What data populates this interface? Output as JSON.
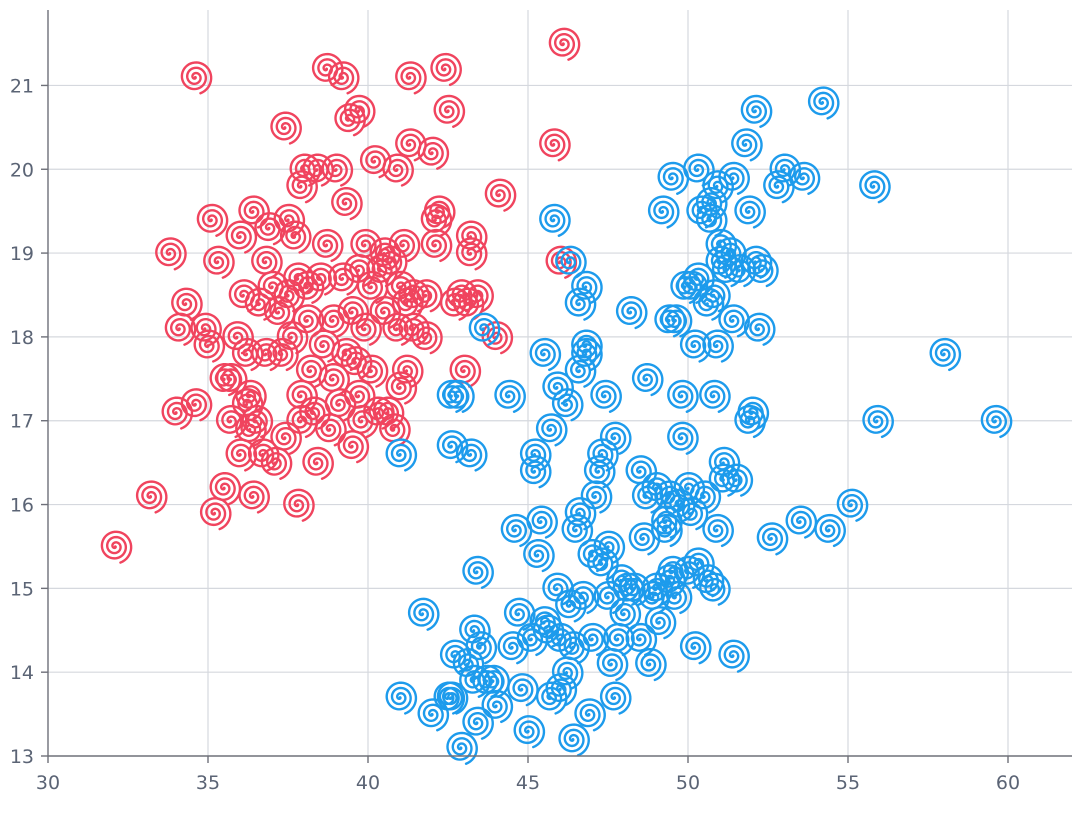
{
  "chart_data": {
    "type": "scatter",
    "title": "",
    "xlabel": "",
    "ylabel": "",
    "xlim": [
      30,
      62
    ],
    "ylim": [
      13,
      21.9
    ],
    "xticks": [
      "30",
      "35",
      "40",
      "45",
      "50",
      "55",
      "60"
    ],
    "yticks": [
      "13",
      "14",
      "15",
      "16",
      "17",
      "18",
      "19",
      "20",
      "21"
    ],
    "grid": true,
    "symbol": "spiral",
    "series": [
      {
        "color": "#f0445e",
        "points": [
          [
            32.1,
            15.5
          ],
          [
            33.2,
            16.1
          ],
          [
            33.8,
            19.0
          ],
          [
            34.0,
            17.1
          ],
          [
            34.1,
            18.1
          ],
          [
            34.3,
            18.4
          ],
          [
            34.6,
            21.1
          ],
          [
            34.6,
            17.2
          ],
          [
            34.9,
            18.1
          ],
          [
            35.0,
            17.9
          ],
          [
            35.1,
            19.4
          ],
          [
            35.2,
            15.9
          ],
          [
            35.3,
            18.9
          ],
          [
            35.5,
            16.2
          ],
          [
            35.5,
            17.5
          ],
          [
            35.7,
            17.5
          ],
          [
            35.7,
            17.0
          ],
          [
            35.9,
            18.0
          ],
          [
            36.0,
            19.2
          ],
          [
            36.1,
            18.5
          ],
          [
            36.0,
            16.6
          ],
          [
            36.2,
            17.8
          ],
          [
            36.2,
            17.2
          ],
          [
            36.3,
            16.9
          ],
          [
            36.3,
            17.3
          ],
          [
            36.4,
            16.1
          ],
          [
            36.4,
            19.5
          ],
          [
            36.5,
            17.0
          ],
          [
            36.6,
            18.4
          ],
          [
            36.7,
            16.6
          ],
          [
            36.8,
            17.8
          ],
          [
            36.8,
            18.9
          ],
          [
            36.9,
            19.3
          ],
          [
            37.0,
            18.6
          ],
          [
            37.1,
            16.5
          ],
          [
            37.2,
            18.3
          ],
          [
            37.3,
            17.8
          ],
          [
            37.4,
            16.8
          ],
          [
            37.4,
            20.5
          ],
          [
            37.5,
            19.4
          ],
          [
            37.5,
            18.5
          ],
          [
            37.6,
            18.0
          ],
          [
            37.7,
            19.2
          ],
          [
            37.8,
            18.7
          ],
          [
            37.8,
            16.0
          ],
          [
            37.9,
            17.0
          ],
          [
            37.9,
            17.3
          ],
          [
            37.9,
            19.8
          ],
          [
            38.0,
            20.0
          ],
          [
            38.1,
            18.2
          ],
          [
            38.1,
            18.6
          ],
          [
            38.2,
            17.6
          ],
          [
            38.3,
            17.1
          ],
          [
            38.4,
            16.5
          ],
          [
            38.4,
            20.0
          ],
          [
            38.5,
            18.7
          ],
          [
            38.6,
            17.9
          ],
          [
            38.7,
            21.2
          ],
          [
            38.7,
            19.1
          ],
          [
            38.8,
            16.9
          ],
          [
            38.9,
            17.5
          ],
          [
            38.9,
            18.2
          ],
          [
            39.0,
            20.0
          ],
          [
            39.1,
            17.2
          ],
          [
            39.2,
            18.7
          ],
          [
            39.2,
            21.1
          ],
          [
            39.3,
            17.8
          ],
          [
            39.3,
            19.6
          ],
          [
            39.4,
            20.6
          ],
          [
            39.5,
            18.3
          ],
          [
            39.5,
            16.7
          ],
          [
            39.6,
            17.7
          ],
          [
            39.7,
            18.8
          ],
          [
            39.7,
            20.7
          ],
          [
            39.7,
            17.3
          ],
          [
            39.8,
            17.0
          ],
          [
            39.9,
            18.1
          ],
          [
            39.9,
            19.1
          ],
          [
            40.1,
            18.6
          ],
          [
            40.1,
            17.6
          ],
          [
            40.2,
            20.1
          ],
          [
            40.3,
            17.1
          ],
          [
            40.4,
            18.8
          ],
          [
            40.5,
            19.0
          ],
          [
            40.5,
            18.3
          ],
          [
            40.6,
            17.1
          ],
          [
            40.7,
            18.9
          ],
          [
            40.8,
            16.9
          ],
          [
            40.9,
            18.1
          ],
          [
            40.9,
            20.0
          ],
          [
            41.0,
            17.4
          ],
          [
            41.0,
            18.6
          ],
          [
            41.1,
            19.1
          ],
          [
            41.2,
            17.6
          ],
          [
            41.2,
            18.4
          ],
          [
            41.3,
            20.3
          ],
          [
            41.3,
            21.1
          ],
          [
            41.4,
            18.1
          ],
          [
            41.4,
            18.5
          ],
          [
            41.8,
            18.5
          ],
          [
            41.8,
            18.0
          ],
          [
            42.0,
            20.2
          ],
          [
            42.1,
            19.1
          ],
          [
            42.1,
            19.4
          ],
          [
            42.2,
            19.5
          ],
          [
            42.4,
            21.2
          ],
          [
            42.5,
            20.7
          ],
          [
            42.7,
            18.4
          ],
          [
            42.9,
            18.5
          ],
          [
            43.0,
            17.6
          ],
          [
            43.1,
            18.4
          ],
          [
            43.2,
            19.0
          ],
          [
            43.2,
            19.2
          ],
          [
            43.4,
            18.5
          ],
          [
            44.0,
            18.0
          ],
          [
            44.1,
            19.7
          ],
          [
            45.8,
            20.3
          ],
          [
            46.1,
            21.5
          ],
          [
            46.0,
            18.9
          ]
        ]
      },
      {
        "color": "#1d9bec",
        "points": [
          [
            41.0,
            13.7
          ],
          [
            41.0,
            16.6
          ],
          [
            41.7,
            14.7
          ],
          [
            42.0,
            13.5
          ],
          [
            42.5,
            13.7
          ],
          [
            42.6,
            17.3
          ],
          [
            42.6,
            16.7
          ],
          [
            42.6,
            13.7
          ],
          [
            42.7,
            14.2
          ],
          [
            42.8,
            17.3
          ],
          [
            42.9,
            13.1
          ],
          [
            43.1,
            14.1
          ],
          [
            43.2,
            16.6
          ],
          [
            43.3,
            14.5
          ],
          [
            43.3,
            13.9
          ],
          [
            43.4,
            13.4
          ],
          [
            43.4,
            15.2
          ],
          [
            43.5,
            14.3
          ],
          [
            43.6,
            18.1
          ],
          [
            43.7,
            13.9
          ],
          [
            43.9,
            13.9
          ],
          [
            44.0,
            13.6
          ],
          [
            44.4,
            17.3
          ],
          [
            44.5,
            14.3
          ],
          [
            44.6,
            15.7
          ],
          [
            44.7,
            14.7
          ],
          [
            44.8,
            13.8
          ],
          [
            45.0,
            13.3
          ],
          [
            45.1,
            14.4
          ],
          [
            45.2,
            16.6
          ],
          [
            45.2,
            16.4
          ],
          [
            45.3,
            15.4
          ],
          [
            45.4,
            15.8
          ],
          [
            45.5,
            17.8
          ],
          [
            45.5,
            14.6
          ],
          [
            45.6,
            14.5
          ],
          [
            45.7,
            16.9
          ],
          [
            45.7,
            13.7
          ],
          [
            45.8,
            19.4
          ],
          [
            45.9,
            17.4
          ],
          [
            45.9,
            15.0
          ],
          [
            46.0,
            14.4
          ],
          [
            46.0,
            13.8
          ],
          [
            46.2,
            14.0
          ],
          [
            46.2,
            17.2
          ],
          [
            46.3,
            14.8
          ],
          [
            46.3,
            18.9
          ],
          [
            46.4,
            13.2
          ],
          [
            46.4,
            14.3
          ],
          [
            46.5,
            15.7
          ],
          [
            46.6,
            15.9
          ],
          [
            46.6,
            18.4
          ],
          [
            46.6,
            17.6
          ],
          [
            46.7,
            14.9
          ],
          [
            46.8,
            17.8
          ],
          [
            46.8,
            18.6
          ],
          [
            46.8,
            17.9
          ],
          [
            46.9,
            13.5
          ],
          [
            47.0,
            14.4
          ],
          [
            47.0,
            15.4
          ],
          [
            47.1,
            16.1
          ],
          [
            47.2,
            16.4
          ],
          [
            47.3,
            15.3
          ],
          [
            47.3,
            16.6
          ],
          [
            47.4,
            17.3
          ],
          [
            47.5,
            15.5
          ],
          [
            47.5,
            14.9
          ],
          [
            47.6,
            14.1
          ],
          [
            47.7,
            16.8
          ],
          [
            47.7,
            13.7
          ],
          [
            47.8,
            14.4
          ],
          [
            47.9,
            15.1
          ],
          [
            48.0,
            14.7
          ],
          [
            48.1,
            15.0
          ],
          [
            48.2,
            18.3
          ],
          [
            48.3,
            15.0
          ],
          [
            48.5,
            14.4
          ],
          [
            48.5,
            16.4
          ],
          [
            48.6,
            15.6
          ],
          [
            48.7,
            16.1
          ],
          [
            48.7,
            17.5
          ],
          [
            48.8,
            14.1
          ],
          [
            48.9,
            14.9
          ],
          [
            49.0,
            15.0
          ],
          [
            49.0,
            16.2
          ],
          [
            49.1,
            14.6
          ],
          [
            49.2,
            19.5
          ],
          [
            49.3,
            15.8
          ],
          [
            49.3,
            15.7
          ],
          [
            49.4,
            15.1
          ],
          [
            49.4,
            16.1
          ],
          [
            49.4,
            18.2
          ],
          [
            49.5,
            15.2
          ],
          [
            49.5,
            19.9
          ],
          [
            49.6,
            14.9
          ],
          [
            49.6,
            18.2
          ],
          [
            49.7,
            16.0
          ],
          [
            49.8,
            17.3
          ],
          [
            49.8,
            16.8
          ],
          [
            49.9,
            18.6
          ],
          [
            50.0,
            16.2
          ],
          [
            50.0,
            15.2
          ],
          [
            50.1,
            15.9
          ],
          [
            50.1,
            18.6
          ],
          [
            50.2,
            17.9
          ],
          [
            50.2,
            14.3
          ],
          [
            50.3,
            18.7
          ],
          [
            50.3,
            20.0
          ],
          [
            50.3,
            15.3
          ],
          [
            50.4,
            19.5
          ],
          [
            50.5,
            16.1
          ],
          [
            50.6,
            15.1
          ],
          [
            50.6,
            18.4
          ],
          [
            50.7,
            19.4
          ],
          [
            50.7,
            19.6
          ],
          [
            50.8,
            17.3
          ],
          [
            50.8,
            18.5
          ],
          [
            50.8,
            15.0
          ],
          [
            50.9,
            19.8
          ],
          [
            50.9,
            15.7
          ],
          [
            50.9,
            17.9
          ],
          [
            51.0,
            18.9
          ],
          [
            51.0,
            19.1
          ],
          [
            51.1,
            16.3
          ],
          [
            51.1,
            16.5
          ],
          [
            51.2,
            18.8
          ],
          [
            51.3,
            19.0
          ],
          [
            51.4,
            18.2
          ],
          [
            51.4,
            19.9
          ],
          [
            51.4,
            14.2
          ],
          [
            51.5,
            16.3
          ],
          [
            51.6,
            18.8
          ],
          [
            51.8,
            20.3
          ],
          [
            51.9,
            19.5
          ],
          [
            51.9,
            17.0
          ],
          [
            52.0,
            17.1
          ],
          [
            52.1,
            18.9
          ],
          [
            52.1,
            20.7
          ],
          [
            52.2,
            18.1
          ],
          [
            52.3,
            18.8
          ],
          [
            52.6,
            15.6
          ],
          [
            52.8,
            19.8
          ],
          [
            53.0,
            20.0
          ],
          [
            53.5,
            15.8
          ],
          [
            53.6,
            19.9
          ],
          [
            54.2,
            20.8
          ],
          [
            54.4,
            15.7
          ],
          [
            55.1,
            16.0
          ],
          [
            55.8,
            19.8
          ],
          [
            55.9,
            17.0
          ],
          [
            58.0,
            17.8
          ],
          [
            59.6,
            17.0
          ]
        ]
      }
    ]
  }
}
